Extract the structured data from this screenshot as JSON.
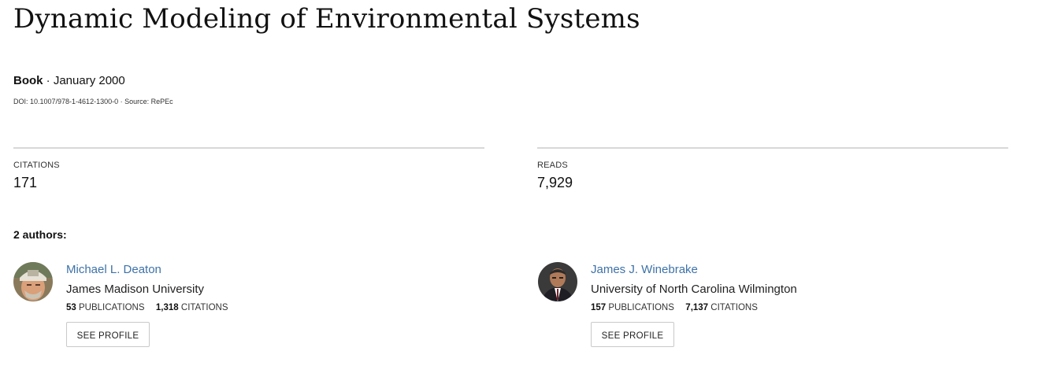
{
  "publication": {
    "title": "Dynamic Modeling of Environmental Systems",
    "type": "Book",
    "separator": "·",
    "date": "January 2000",
    "doi": "DOI: 10.1007/978-1-4612-1300-0",
    "source": "Source: RePEc"
  },
  "stats": {
    "citations_label": "CITATIONS",
    "citations_value": "171",
    "reads_label": "READS",
    "reads_value": "7,929"
  },
  "authors_heading": "2 authors:",
  "authors": [
    {
      "name": "Michael L. Deaton",
      "institution": "James Madison University",
      "publications_count": "53",
      "publications_label": "PUBLICATIONS",
      "citations_count": "1,318",
      "citations_label": "CITATIONS",
      "button_label": "SEE PROFILE"
    },
    {
      "name": "James J. Winebrake",
      "institution": "University of North Carolina Wilmington",
      "publications_count": "157",
      "publications_label": "PUBLICATIONS",
      "citations_count": "7,137",
      "citations_label": "CITATIONS",
      "button_label": "SEE PROFILE"
    }
  ]
}
